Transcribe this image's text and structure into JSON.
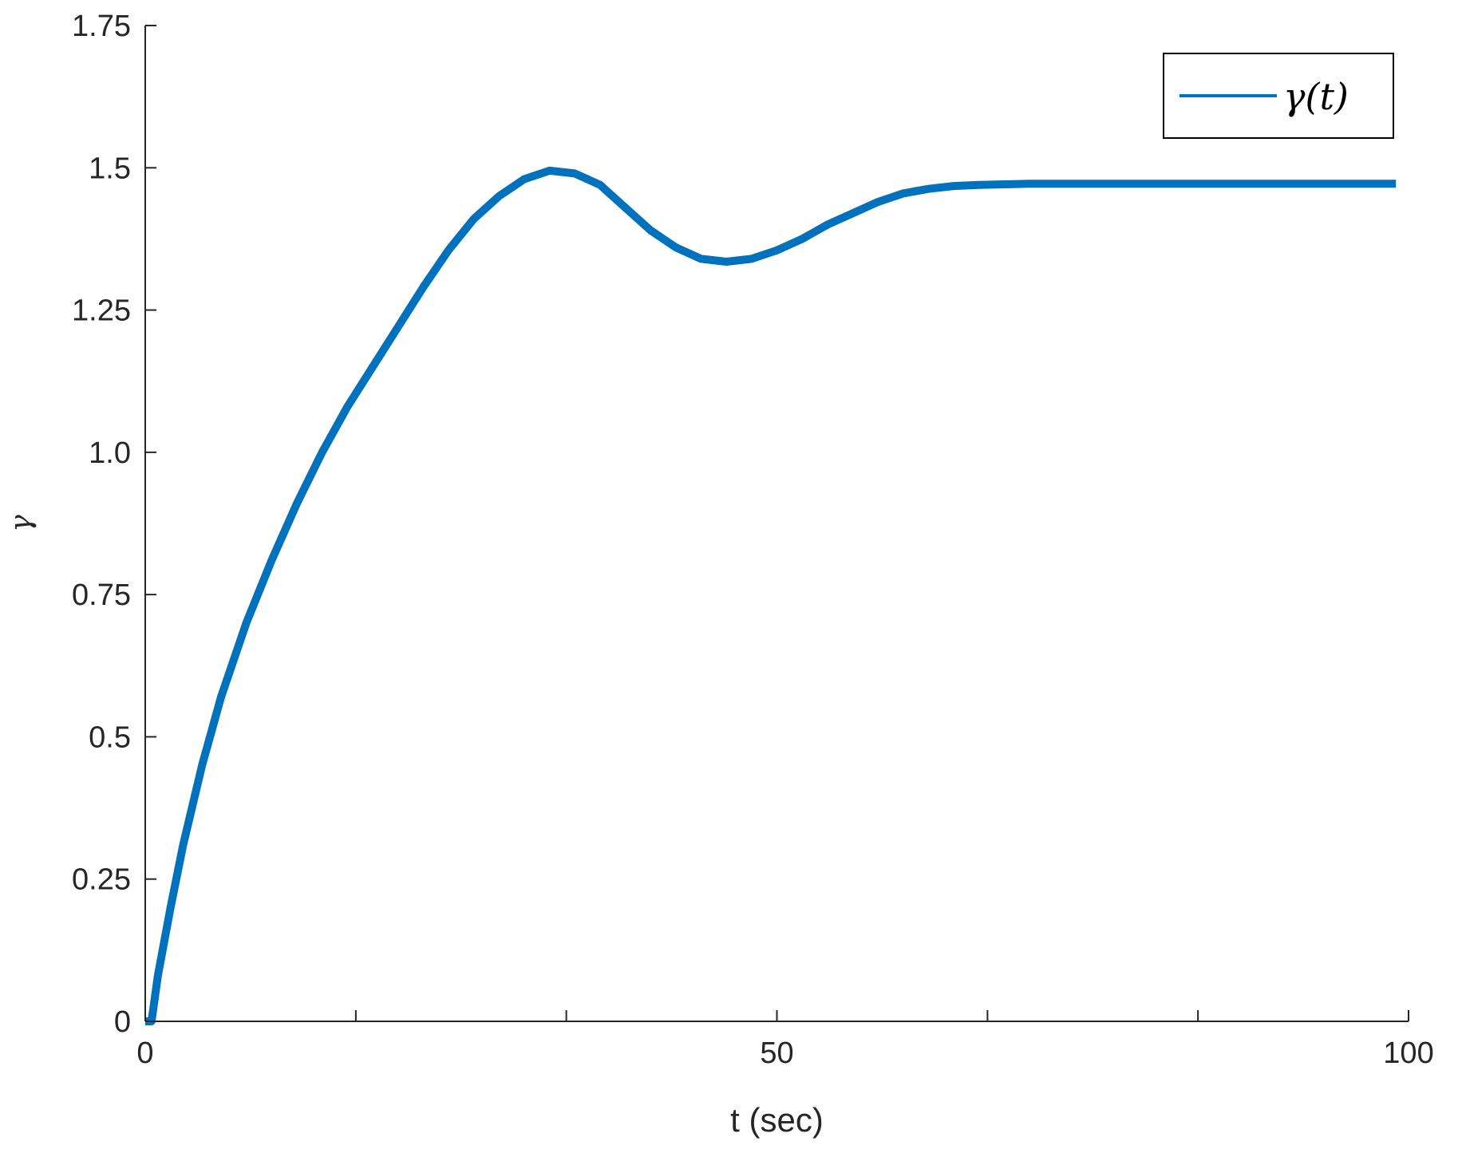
{
  "colors": {
    "series": "#0072bd",
    "axis": "#262626",
    "background": "#ffffff"
  },
  "chart_data": {
    "type": "line",
    "title": "",
    "xlabel": "t (sec)",
    "ylabel": "γ",
    "xlim": [
      0,
      100
    ],
    "ylim": [
      0,
      1.75
    ],
    "xticks": [
      0,
      16.67,
      33.33,
      50,
      66.67,
      83.33,
      100
    ],
    "xtick_labels": [
      "0",
      "",
      "",
      "50",
      "",
      "",
      "100"
    ],
    "yticks": [
      0,
      0.25,
      0.5,
      0.75,
      1.0,
      1.25,
      1.5,
      1.75
    ],
    "ytick_labels": [
      "0",
      "0.25",
      "0.5",
      "0.75",
      "1.0",
      "1.25",
      "1.5",
      "1.75"
    ],
    "grid": false,
    "legend": {
      "position": "top-right",
      "entries": [
        "γ(t)"
      ]
    },
    "series": [
      {
        "name": "γ(t)",
        "color": "#0072bd",
        "x": [
          0,
          0.5,
          1,
          2,
          3,
          4.5,
          6,
          8,
          10,
          12,
          14,
          16,
          18,
          20,
          22,
          24,
          26,
          28,
          30,
          32,
          34,
          36,
          38,
          40,
          42,
          44,
          46,
          48,
          50,
          52,
          54,
          56,
          58,
          60,
          62,
          64,
          66,
          68,
          70,
          72,
          75,
          80,
          85,
          90,
          95,
          99
        ],
        "y": [
          0,
          0.0,
          0.08,
          0.2,
          0.31,
          0.45,
          0.57,
          0.7,
          0.81,
          0.91,
          1.0,
          1.08,
          1.15,
          1.22,
          1.29,
          1.355,
          1.41,
          1.45,
          1.48,
          1.495,
          1.49,
          1.47,
          1.43,
          1.39,
          1.36,
          1.34,
          1.335,
          1.34,
          1.355,
          1.375,
          1.4,
          1.42,
          1.44,
          1.455,
          1.463,
          1.468,
          1.47,
          1.471,
          1.472,
          1.472,
          1.472,
          1.472,
          1.472,
          1.472,
          1.472,
          1.472
        ]
      }
    ]
  }
}
